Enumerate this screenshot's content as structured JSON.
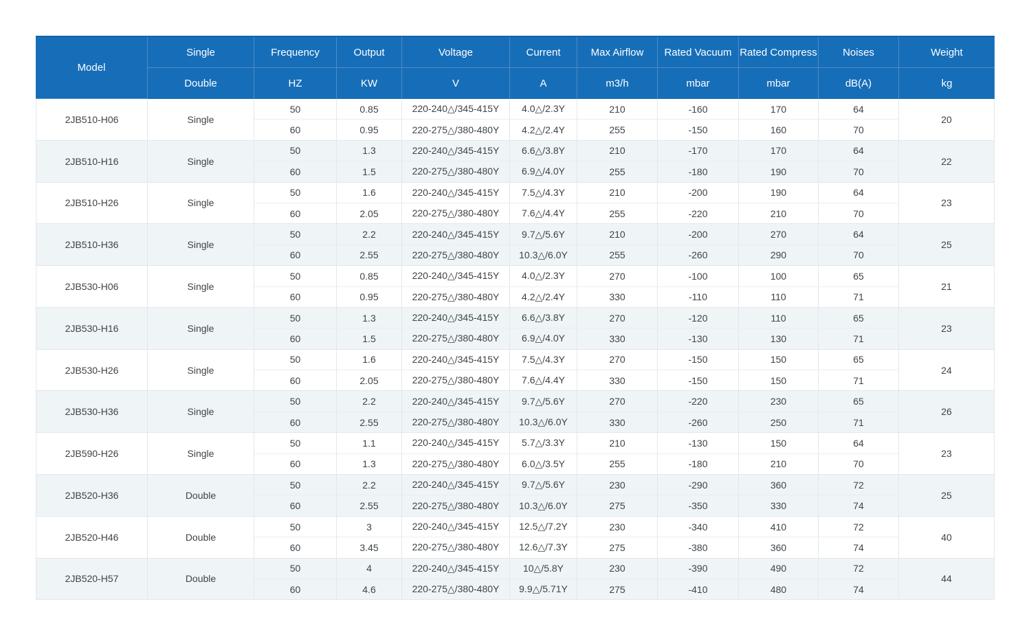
{
  "table": {
    "header": {
      "model": "Model",
      "cols": [
        {
          "top": "Single",
          "bottom": "Double"
        },
        {
          "top": "Frequency",
          "bottom": "HZ"
        },
        {
          "top": "Output",
          "bottom": "KW"
        },
        {
          "top": "Voltage",
          "bottom": "V"
        },
        {
          "top": "Current",
          "bottom": "A"
        },
        {
          "top": "Max Airflow",
          "bottom": "m3/h"
        },
        {
          "top": "Rated Vacuum",
          "bottom": "mbar"
        },
        {
          "top": "Rated Compress",
          "bottom": "mbar"
        },
        {
          "top": "Noises",
          "bottom": "dB(A)"
        },
        {
          "top": "Weight",
          "bottom": "kg"
        }
      ]
    },
    "rows": [
      {
        "model": "2JB510-H06",
        "type": "Single",
        "weight": "20",
        "specs": [
          {
            "hz": "50",
            "kw": "0.85",
            "v": "220-240△/345-415Y",
            "a": "4.0△/2.3Y",
            "airflow": "210",
            "vacuum": "-160",
            "compress": "170",
            "noise": "64"
          },
          {
            "hz": "60",
            "kw": "0.95",
            "v": "220-275△/380-480Y",
            "a": "4.2△/2.4Y",
            "airflow": "255",
            "vacuum": "-150",
            "compress": "160",
            "noise": "70"
          }
        ]
      },
      {
        "model": "2JB510-H16",
        "type": "Single",
        "weight": "22",
        "specs": [
          {
            "hz": "50",
            "kw": "1.3",
            "v": "220-240△/345-415Y",
            "a": "6.6△/3.8Y",
            "airflow": "210",
            "vacuum": "-170",
            "compress": "170",
            "noise": "64"
          },
          {
            "hz": "60",
            "kw": "1.5",
            "v": "220-275△/380-480Y",
            "a": "6.9△/4.0Y",
            "airflow": "255",
            "vacuum": "-180",
            "compress": "190",
            "noise": "70"
          }
        ]
      },
      {
        "model": "2JB510-H26",
        "type": "Single",
        "weight": "23",
        "specs": [
          {
            "hz": "50",
            "kw": "1.6",
            "v": "220-240△/345-415Y",
            "a": "7.5△/4.3Y",
            "airflow": "210",
            "vacuum": "-200",
            "compress": "190",
            "noise": "64"
          },
          {
            "hz": "60",
            "kw": "2.05",
            "v": "220-275△/380-480Y",
            "a": "7.6△/4.4Y",
            "airflow": "255",
            "vacuum": "-220",
            "compress": "210",
            "noise": "70"
          }
        ]
      },
      {
        "model": "2JB510-H36",
        "type": "Single",
        "weight": "25",
        "specs": [
          {
            "hz": "50",
            "kw": "2.2",
            "v": "220-240△/345-415Y",
            "a": "9.7△/5.6Y",
            "airflow": "210",
            "vacuum": "-200",
            "compress": "270",
            "noise": "64"
          },
          {
            "hz": "60",
            "kw": "2.55",
            "v": "220-275△/380-480Y",
            "a": "10.3△/6.0Y",
            "airflow": "255",
            "vacuum": "-260",
            "compress": "290",
            "noise": "70"
          }
        ]
      },
      {
        "model": "2JB530-H06",
        "type": "Single",
        "weight": "21",
        "specs": [
          {
            "hz": "50",
            "kw": "0.85",
            "v": "220-240△/345-415Y",
            "a": "4.0△/2.3Y",
            "airflow": "270",
            "vacuum": "-100",
            "compress": "100",
            "noise": "65"
          },
          {
            "hz": "60",
            "kw": "0.95",
            "v": "220-275△/380-480Y",
            "a": "4.2△/2.4Y",
            "airflow": "330",
            "vacuum": "-110",
            "compress": "110",
            "noise": "71"
          }
        ]
      },
      {
        "model": "2JB530-H16",
        "type": "Single",
        "weight": "23",
        "specs": [
          {
            "hz": "50",
            "kw": "1.3",
            "v": "220-240△/345-415Y",
            "a": "6.6△/3.8Y",
            "airflow": "270",
            "vacuum": "-120",
            "compress": "110",
            "noise": "65"
          },
          {
            "hz": "60",
            "kw": "1.5",
            "v": "220-275△/380-480Y",
            "a": "6.9△/4.0Y",
            "airflow": "330",
            "vacuum": "-130",
            "compress": "130",
            "noise": "71"
          }
        ]
      },
      {
        "model": "2JB530-H26",
        "type": "Single",
        "weight": "24",
        "specs": [
          {
            "hz": "50",
            "kw": "1.6",
            "v": "220-240△/345-415Y",
            "a": "7.5△/4.3Y",
            "airflow": "270",
            "vacuum": "-150",
            "compress": "150",
            "noise": "65"
          },
          {
            "hz": "60",
            "kw": "2.05",
            "v": "220-275△/380-480Y",
            "a": "7.6△/4.4Y",
            "airflow": "330",
            "vacuum": "-150",
            "compress": "150",
            "noise": "71"
          }
        ]
      },
      {
        "model": "2JB530-H36",
        "type": "Single",
        "weight": "26",
        "specs": [
          {
            "hz": "50",
            "kw": "2.2",
            "v": "220-240△/345-415Y",
            "a": "9.7△/5.6Y",
            "airflow": "270",
            "vacuum": "-220",
            "compress": "230",
            "noise": "65"
          },
          {
            "hz": "60",
            "kw": "2.55",
            "v": "220-275△/380-480Y",
            "a": "10.3△/6.0Y",
            "airflow": "330",
            "vacuum": "-260",
            "compress": "250",
            "noise": "71"
          }
        ]
      },
      {
        "model": "2JB590-H26",
        "type": "Single",
        "weight": "23",
        "specs": [
          {
            "hz": "50",
            "kw": "1.1",
            "v": "220-240△/345-415Y",
            "a": "5.7△/3.3Y",
            "airflow": "210",
            "vacuum": "-130",
            "compress": "150",
            "noise": "64"
          },
          {
            "hz": "60",
            "kw": "1.3",
            "v": "220-275△/380-480Y",
            "a": "6.0△/3.5Y",
            "airflow": "255",
            "vacuum": "-180",
            "compress": "210",
            "noise": "70"
          }
        ]
      },
      {
        "model": "2JB520-H36",
        "type": "Double",
        "weight": "25",
        "specs": [
          {
            "hz": "50",
            "kw": "2.2",
            "v": "220-240△/345-415Y",
            "a": "9.7△/5.6Y",
            "airflow": "230",
            "vacuum": "-290",
            "compress": "360",
            "noise": "72"
          },
          {
            "hz": "60",
            "kw": "2.55",
            "v": "220-275△/380-480Y",
            "a": "10.3△/6.0Y",
            "airflow": "275",
            "vacuum": "-350",
            "compress": "330",
            "noise": "74"
          }
        ]
      },
      {
        "model": "2JB520-H46",
        "type": "Double",
        "weight": "40",
        "specs": [
          {
            "hz": "50",
            "kw": "3",
            "v": "220-240△/345-415Y",
            "a": "12.5△/7.2Y",
            "airflow": "230",
            "vacuum": "-340",
            "compress": "410",
            "noise": "72"
          },
          {
            "hz": "60",
            "kw": "3.45",
            "v": "220-275△/380-480Y",
            "a": "12.6△/7.3Y",
            "airflow": "275",
            "vacuum": "-380",
            "compress": "360",
            "noise": "74"
          }
        ]
      },
      {
        "model": "2JB520-H57",
        "type": "Double",
        "weight": "44",
        "specs": [
          {
            "hz": "50",
            "kw": "4",
            "v": "220-240△/345-415Y",
            "a": "10△/5.8Y",
            "airflow": "230",
            "vacuum": "-390",
            "compress": "490",
            "noise": "72"
          },
          {
            "hz": "60",
            "kw": "4.6",
            "v": "220-275△/380-480Y",
            "a": "9.9△/5.71Y",
            "airflow": "275",
            "vacuum": "-410",
            "compress": "480",
            "noise": "74"
          }
        ]
      }
    ],
    "colors": {
      "header_bg": "#176eb8",
      "header_text": "#ffffff",
      "header_divider": "#4a8cc8",
      "header_top_line": "#1263a5",
      "row_bg": "#ffffff",
      "row_alt_bg": "#eff4f7",
      "grid_line": "#e2e7eb",
      "inner_line": "#eaeef1",
      "text": "#3f4346"
    }
  }
}
